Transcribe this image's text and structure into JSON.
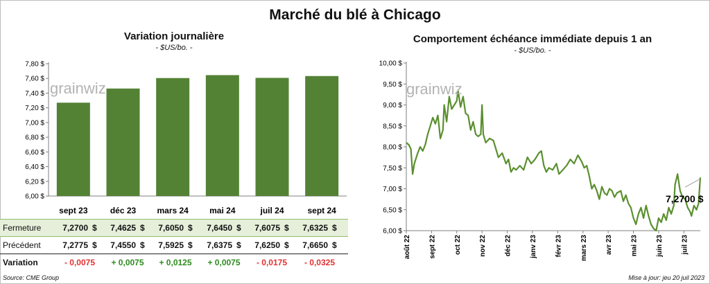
{
  "title": "Marché du blé à Chicago",
  "left_chart": {
    "title": "Variation journalière",
    "unit": "- $US/bo. -",
    "watermark": "grainwiz"
  },
  "right_chart": {
    "title": "Comportement échéance immédiate depuis 1 an",
    "unit": "- $US/bo. -",
    "watermark": "grainwiz",
    "last_label": "7,2700 $"
  },
  "table": {
    "rows": [
      {
        "label": "Fermeture",
        "values": [
          "7,2700",
          "7,4625",
          "7,6050",
          "7,6450",
          "7,6075",
          "7,6325"
        ]
      },
      {
        "label": "Précédent",
        "values": [
          "7,2775",
          "7,4550",
          "7,5925",
          "7,6375",
          "7,6250",
          "7,6650"
        ]
      },
      {
        "label": "Variation",
        "values": [
          "- 0,0075",
          "+ 0,0075",
          "+ 0,0125",
          "+ 0,0075",
          "- 0,0175",
          "- 0,0325"
        ]
      }
    ],
    "currency": "$"
  },
  "footer": {
    "source": "Source: CME Group",
    "update": "Mise à jour: jeu 20 juil 2023"
  },
  "colors": {
    "bar": "#548235",
    "line": "#5a8f2e",
    "pos": "#2e8b1f",
    "neg": "#e03030",
    "fill": "#e6efda"
  },
  "chart_data": [
    {
      "type": "bar",
      "title": "Variation journalière",
      "ylabel": "$US/bo.",
      "categories": [
        "sept 23",
        "déc 23",
        "mars 24",
        "mai 24",
        "juil 24",
        "sept 24"
      ],
      "values": [
        7.27,
        7.4625,
        7.605,
        7.645,
        7.6075,
        7.6325
      ],
      "ylim": [
        6.0,
        7.8
      ],
      "yticks": [
        6.0,
        6.2,
        6.4,
        6.6,
        6.8,
        7.0,
        7.2,
        7.4,
        7.6,
        7.8
      ],
      "ytick_labels": [
        "6,00 $",
        "6,20 $",
        "6,40 $",
        "6,60 $",
        "6,80 $",
        "7,00 $",
        "7,20 $",
        "7,40 $",
        "7,60 $",
        "7,80 $"
      ]
    },
    {
      "type": "line",
      "title": "Comportement échéance immédiate depuis 1 an",
      "ylabel": "$US/bo.",
      "ylim": [
        6.0,
        10.0
      ],
      "yticks": [
        6.0,
        6.5,
        7.0,
        7.5,
        8.0,
        8.5,
        9.0,
        9.5,
        10.0
      ],
      "ytick_labels": [
        "6,00 $",
        "6,50 $",
        "7,00 $",
        "7,50 $",
        "8,00 $",
        "8,50 $",
        "9,00 $",
        "9,50 $",
        "10,00 $"
      ],
      "x_labels": [
        "août 22",
        "sept 22",
        "oct 22",
        "nov 22",
        "déc 22",
        "janv 23",
        "févr 23",
        "mars 23",
        "avr 23",
        "mai 23",
        "juin 23",
        "juil 23"
      ],
      "x_range_months": [
        0,
        11.65
      ],
      "points": [
        [
          0.0,
          8.1
        ],
        [
          0.1,
          8.05
        ],
        [
          0.18,
          7.95
        ],
        [
          0.25,
          7.35
        ],
        [
          0.32,
          7.6
        ],
        [
          0.45,
          7.85
        ],
        [
          0.55,
          8.0
        ],
        [
          0.65,
          7.9
        ],
        [
          0.75,
          8.05
        ],
        [
          0.85,
          8.3
        ],
        [
          0.95,
          8.5
        ],
        [
          1.05,
          8.7
        ],
        [
          1.15,
          8.55
        ],
        [
          1.25,
          8.75
        ],
        [
          1.35,
          8.2
        ],
        [
          1.45,
          8.4
        ],
        [
          1.5,
          9.0
        ],
        [
          1.6,
          8.6
        ],
        [
          1.7,
          9.2
        ],
        [
          1.8,
          8.9
        ],
        [
          1.9,
          9.0
        ],
        [
          2.0,
          9.1
        ],
        [
          2.05,
          9.35
        ],
        [
          2.15,
          8.95
        ],
        [
          2.25,
          9.2
        ],
        [
          2.35,
          8.8
        ],
        [
          2.45,
          8.75
        ],
        [
          2.55,
          8.4
        ],
        [
          2.65,
          8.6
        ],
        [
          2.75,
          8.3
        ],
        [
          2.85,
          8.25
        ],
        [
          2.95,
          8.3
        ],
        [
          3.0,
          9.0
        ],
        [
          3.05,
          8.3
        ],
        [
          3.15,
          8.1
        ],
        [
          3.3,
          8.2
        ],
        [
          3.45,
          8.15
        ],
        [
          3.55,
          7.95
        ],
        [
          3.65,
          7.75
        ],
        [
          3.8,
          7.85
        ],
        [
          3.95,
          7.6
        ],
        [
          4.05,
          7.7
        ],
        [
          4.15,
          7.4
        ],
        [
          4.25,
          7.5
        ],
        [
          4.35,
          7.45
        ],
        [
          4.5,
          7.55
        ],
        [
          4.65,
          7.45
        ],
        [
          4.8,
          7.75
        ],
        [
          4.95,
          7.6
        ],
        [
          5.1,
          7.7
        ],
        [
          5.25,
          7.85
        ],
        [
          5.35,
          7.9
        ],
        [
          5.45,
          7.55
        ],
        [
          5.55,
          7.4
        ],
        [
          5.65,
          7.5
        ],
        [
          5.8,
          7.45
        ],
        [
          5.95,
          7.6
        ],
        [
          6.05,
          7.35
        ],
        [
          6.2,
          7.45
        ],
        [
          6.35,
          7.55
        ],
        [
          6.5,
          7.7
        ],
        [
          6.65,
          7.6
        ],
        [
          6.8,
          7.8
        ],
        [
          6.95,
          7.65
        ],
        [
          7.05,
          7.5
        ],
        [
          7.15,
          7.55
        ],
        [
          7.25,
          7.3
        ],
        [
          7.35,
          7.0
        ],
        [
          7.45,
          7.1
        ],
        [
          7.55,
          6.95
        ],
        [
          7.65,
          6.75
        ],
        [
          7.75,
          7.05
        ],
        [
          7.85,
          6.9
        ],
        [
          7.95,
          6.85
        ],
        [
          8.05,
          7.0
        ],
        [
          8.15,
          6.95
        ],
        [
          8.25,
          6.8
        ],
        [
          8.35,
          6.9
        ],
        [
          8.5,
          6.95
        ],
        [
          8.6,
          6.7
        ],
        [
          8.7,
          6.85
        ],
        [
          8.8,
          6.65
        ],
        [
          8.9,
          6.55
        ],
        [
          9.0,
          6.3
        ],
        [
          9.1,
          6.15
        ],
        [
          9.2,
          6.4
        ],
        [
          9.3,
          6.55
        ],
        [
          9.4,
          6.3
        ],
        [
          9.5,
          6.6
        ],
        [
          9.6,
          6.35
        ],
        [
          9.7,
          6.15
        ],
        [
          9.8,
          6.05
        ],
        [
          9.9,
          6.0
        ],
        [
          10.0,
          6.3
        ],
        [
          10.1,
          6.2
        ],
        [
          10.2,
          6.4
        ],
        [
          10.3,
          6.25
        ],
        [
          10.4,
          6.55
        ],
        [
          10.5,
          6.4
        ],
        [
          10.6,
          6.6
        ],
        [
          10.65,
          7.1
        ],
        [
          10.75,
          7.35
        ],
        [
          10.85,
          6.95
        ],
        [
          10.95,
          6.8
        ],
        [
          11.05,
          6.75
        ],
        [
          11.15,
          6.55
        ],
        [
          11.25,
          6.45
        ],
        [
          11.3,
          6.35
        ],
        [
          11.4,
          6.6
        ],
        [
          11.5,
          6.5
        ],
        [
          11.58,
          6.65
        ],
        [
          11.65,
          7.27
        ]
      ],
      "last_value": 7.27
    }
  ]
}
